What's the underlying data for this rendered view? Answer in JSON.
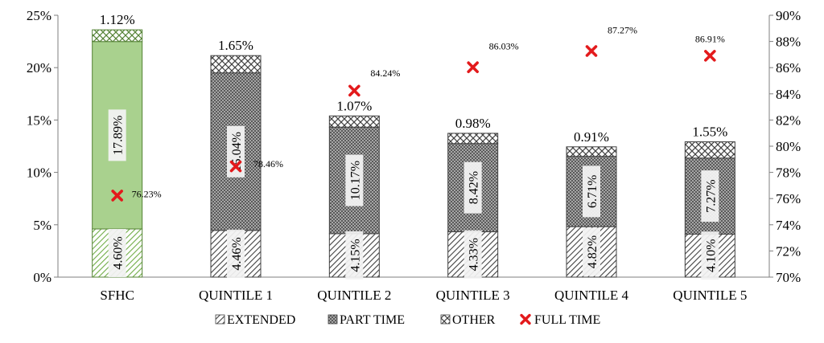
{
  "chart_data": {
    "type": "bar",
    "categories": [
      "SFHC",
      "QUINTILE 1",
      "QUINTILE 2",
      "QUINTILE 3",
      "QUINTILE 4",
      "QUINTILE 5"
    ],
    "series": [
      {
        "name": "EXTENDED",
        "axis": "left",
        "values": [
          4.6,
          4.46,
          4.15,
          4.33,
          4.82,
          4.1
        ],
        "labels": [
          "4.60%",
          "4.46%",
          "4.15%",
          "4.33%",
          "4.82%",
          "4.10%"
        ]
      },
      {
        "name": "PART TIME",
        "axis": "left",
        "values": [
          17.89,
          15.04,
          10.17,
          8.42,
          6.71,
          7.27
        ],
        "labels": [
          "17.89%",
          "15.04%",
          "10.17%",
          "8.42%",
          "6.71%",
          "7.27%"
        ]
      },
      {
        "name": "OTHER",
        "axis": "left",
        "values": [
          1.12,
          1.65,
          1.07,
          0.98,
          0.91,
          1.55
        ],
        "labels": [
          "1.12%",
          "1.65%",
          "1.07%",
          "0.98%",
          "0.91%",
          "1.55%"
        ]
      },
      {
        "name": "FULL TIME",
        "axis": "right",
        "type": "scatter",
        "values": [
          76.23,
          78.46,
          84.24,
          86.03,
          87.27,
          86.91
        ],
        "labels": [
          "76.23%",
          "78.46%",
          "84.24%",
          "86.03%",
          "87.27%",
          "86.91%"
        ]
      }
    ],
    "y_left": {
      "range": [
        0,
        25
      ],
      "ticks": [
        "0%",
        "5%",
        "10%",
        "15%",
        "20%",
        "25%"
      ]
    },
    "y_right": {
      "range": [
        70,
        90
      ],
      "ticks": [
        "70%",
        "72%",
        "74%",
        "76%",
        "78%",
        "80%",
        "82%",
        "84%",
        "86%",
        "88%",
        "90%"
      ]
    },
    "legend_position": "bottom",
    "grid": false,
    "colors": {
      "sfhc_fill": "#a9d18e",
      "sfhc_line": "#548235",
      "dark_fill": "#7f7f7f",
      "dark_line": "#404040",
      "full_time_marker": "#e31a1c"
    }
  }
}
